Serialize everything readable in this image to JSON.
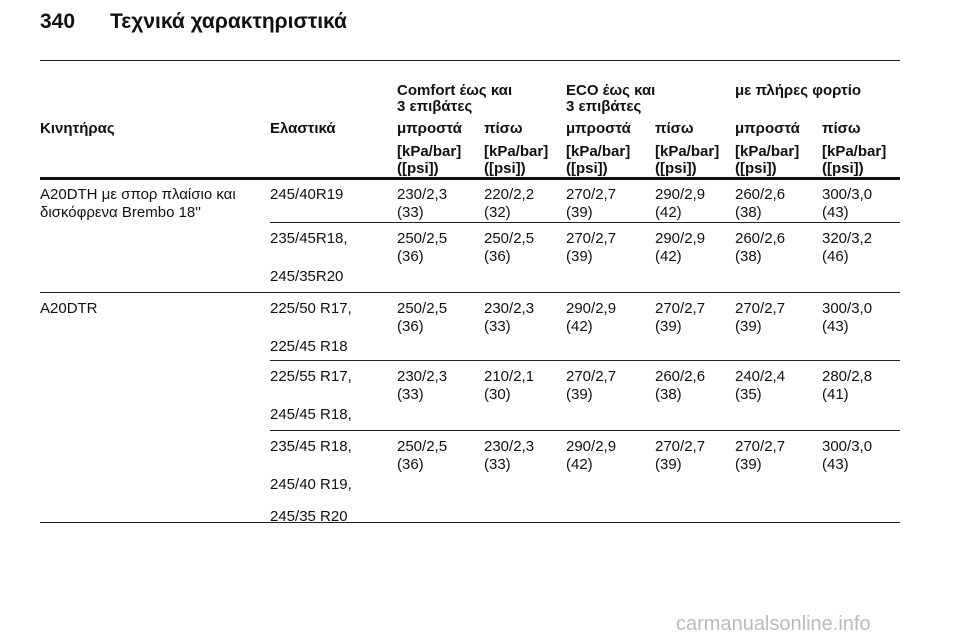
{
  "header": {
    "page": "340",
    "title": "Τεχνικά χαρακτηριστικά"
  },
  "table": {
    "groups": [
      [
        "Comfort έως και",
        "3 επιβάτες"
      ],
      [
        "ECO έως και",
        "3 επιβάτες"
      ],
      [
        "με πλήρες φορτίο"
      ]
    ],
    "columns": [
      "Κινητήρας",
      "Ελαστικά",
      "μπροστά",
      "πίσω",
      "μπροστά",
      "πίσω",
      "μπροστά",
      "πίσω"
    ],
    "units": [
      [
        "[kPa/bar]",
        "([psi])"
      ],
      [
        "[kPa/bar]",
        "([psi])"
      ],
      [
        "[kPa/bar]",
        "([psi])"
      ],
      [
        "[kPa/bar]",
        "([psi])"
      ],
      [
        "[kPa/bar]",
        "([psi])"
      ],
      [
        "[kPa/bar]",
        "([psi])"
      ]
    ],
    "rows": [
      {
        "engine": [
          "A20DTH με σπορ πλαίσιο και",
          "δισκόφρενα Brembo 18''"
        ],
        "tires": [
          "245/40R19"
        ],
        "pressures": [
          [
            "230/2,3",
            "(33)"
          ],
          [
            "220/2,2",
            "(32)"
          ],
          [
            "270/2,7",
            "(39)"
          ],
          [
            "290/2,9",
            "(42)"
          ],
          [
            "260/2,6",
            "(38)"
          ],
          [
            "300/3,0",
            "(43)"
          ]
        ]
      },
      {
        "tires": [
          "235/45R18,",
          "245/35R20"
        ],
        "pressures": [
          [
            "250/2,5",
            "(36)"
          ],
          [
            "250/2,5",
            "(36)"
          ],
          [
            "270/2,7",
            "(39)"
          ],
          [
            "290/2,9",
            "(42)"
          ],
          [
            "260/2,6",
            "(38)"
          ],
          [
            "320/3,2",
            "(46)"
          ]
        ]
      },
      {
        "engine": [
          "A20DTR"
        ],
        "tires": [
          "225/50 R17,",
          "225/45 R18"
        ],
        "pressures": [
          [
            "250/2,5",
            "(36)"
          ],
          [
            "230/2,3",
            "(33)"
          ],
          [
            "290/2,9",
            "(42)"
          ],
          [
            "270/2,7",
            "(39)"
          ],
          [
            "270/2,7",
            "(39)"
          ],
          [
            "300/3,0",
            "(43)"
          ]
        ]
      },
      {
        "tires": [
          "225/55 R17,",
          "245/45 R18,"
        ],
        "pressures": [
          [
            "230/2,3",
            "(33)"
          ],
          [
            "210/2,1",
            "(30)"
          ],
          [
            "270/2,7",
            "(39)"
          ],
          [
            "260/2,6",
            "(38)"
          ],
          [
            "240/2,4",
            "(35)"
          ],
          [
            "280/2,8",
            "(41)"
          ]
        ]
      },
      {
        "tires": [
          "235/45 R18,",
          "245/40 R19,",
          "245/35 R20"
        ],
        "pressures": [
          [
            "250/2,5",
            "(36)"
          ],
          [
            "230/2,3",
            "(33)"
          ],
          [
            "290/2,9",
            "(42)"
          ],
          [
            "270/2,7",
            "(39)"
          ],
          [
            "270/2,7",
            "(39)"
          ],
          [
            "300/3,0",
            "(43)"
          ]
        ]
      }
    ]
  },
  "watermark": "carmanualsonline.info"
}
